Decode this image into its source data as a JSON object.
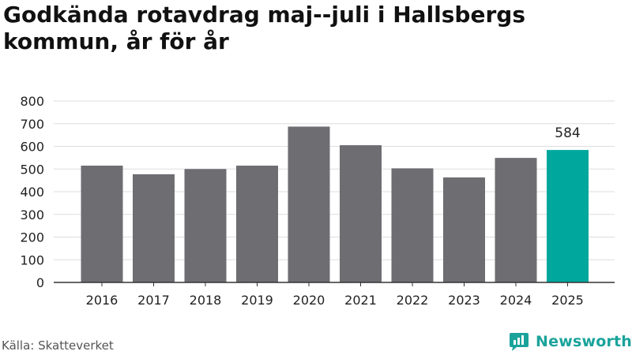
{
  "header": {
    "title": "Godkända rotavdrag maj--juli i Hallsbergs kommun, år för år"
  },
  "footer": {
    "source": "Källa: Skatteverket",
    "brand": "Newsworthy"
  },
  "colors": {
    "bar": "#6e6d72",
    "highlight": "#00a79d",
    "grid": "#dddddd",
    "brand": "#1aa39b"
  },
  "chart_data": {
    "type": "bar",
    "categories": [
      "2016",
      "2017",
      "2018",
      "2019",
      "2020",
      "2021",
      "2022",
      "2023",
      "2024",
      "2025"
    ],
    "values": [
      515,
      477,
      500,
      515,
      687,
      605,
      503,
      463,
      549,
      584
    ],
    "highlight_index": 9,
    "data_labels": [
      {
        "index": 9,
        "text": "584"
      }
    ],
    "title": "Godkända rotavdrag maj--juli i Hallsbergs kommun, år för år",
    "xlabel": "",
    "ylabel": "",
    "ylim": [
      0,
      800
    ],
    "yticks": [
      0,
      100,
      200,
      300,
      400,
      500,
      600,
      700,
      800
    ],
    "grid": true,
    "legend": "none"
  }
}
